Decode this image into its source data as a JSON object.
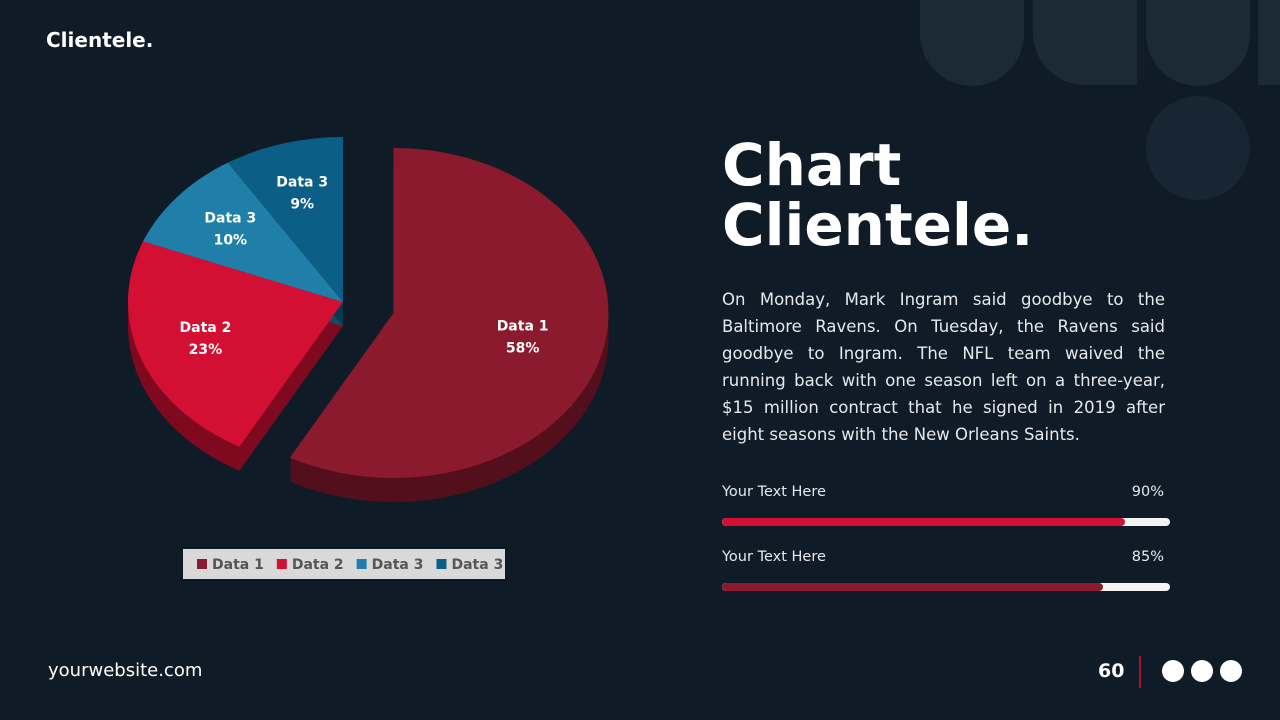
{
  "header": {
    "brand": "Clientele."
  },
  "heading": {
    "lines": [
      "Chart",
      "Clientele."
    ]
  },
  "body": "On Monday, Mark Ingram said goodbye to the Baltimore Ravens. On Tuesday, the Ravens said goodbye to Ingram. The NFL team waived the running back with one season left on a three-year, $15 million contract that he signed in 2019 after eight seasons with the New Orleans Saints.",
  "progress": [
    {
      "label": "Your Text Here",
      "value": 90,
      "value_label": "90%",
      "color": "#d40f34"
    },
    {
      "label": "Your Text Here",
      "value": 85,
      "value_label": "85%",
      "color": "#8b1a2e"
    }
  ],
  "footer": {
    "website": "yourwebsite.com",
    "page": "60"
  },
  "chart_data": {
    "type": "pie",
    "categories": [
      "Data 1",
      "Data 2",
      "Data 3",
      "Data 3"
    ],
    "values": [
      58,
      23,
      10,
      9
    ],
    "value_labels": [
      "58%",
      "23%",
      "10%",
      "9%"
    ],
    "colors": [
      "#8b1a2e",
      "#d40f34",
      "#1f7fa8",
      "#0b5f86"
    ],
    "legend": "bottom"
  }
}
